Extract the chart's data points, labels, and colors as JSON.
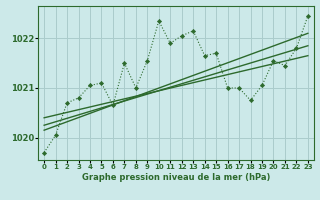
{
  "title": "Graphe pression niveau de la mer (hPa)",
  "background_color": "#cce9e9",
  "grid_color": "#aacccc",
  "line_color": "#2d6a2d",
  "marker_color": "#2d6a2d",
  "xlim": [
    -0.5,
    23.5
  ],
  "ylim": [
    1019.55,
    1022.65
  ],
  "yticks": [
    1020,
    1021,
    1022
  ],
  "xticks": [
    0,
    1,
    2,
    3,
    4,
    5,
    6,
    7,
    8,
    9,
    10,
    11,
    12,
    13,
    14,
    15,
    16,
    17,
    18,
    19,
    20,
    21,
    22,
    23
  ],
  "series1": {
    "x": [
      0,
      1,
      2,
      3,
      4,
      5,
      6,
      7,
      8,
      9,
      10,
      11,
      12,
      13,
      14,
      15,
      16,
      17,
      18,
      19,
      20,
      21,
      22,
      23
    ],
    "y": [
      1019.7,
      1020.05,
      1020.7,
      1020.8,
      1021.05,
      1021.1,
      1020.65,
      1021.5,
      1021.0,
      1021.55,
      1022.35,
      1021.9,
      1022.05,
      1022.15,
      1021.65,
      1021.7,
      1021.0,
      1021.0,
      1020.75,
      1021.05,
      1021.55,
      1021.45,
      1021.8,
      1022.45
    ]
  },
  "series2": {
    "x": [
      0,
      23
    ],
    "y": [
      1020.15,
      1022.1
    ]
  },
  "series3": {
    "x": [
      0,
      23
    ],
    "y": [
      1020.4,
      1021.65
    ]
  },
  "series4": {
    "x": [
      0,
      23
    ],
    "y": [
      1020.25,
      1021.85
    ]
  }
}
